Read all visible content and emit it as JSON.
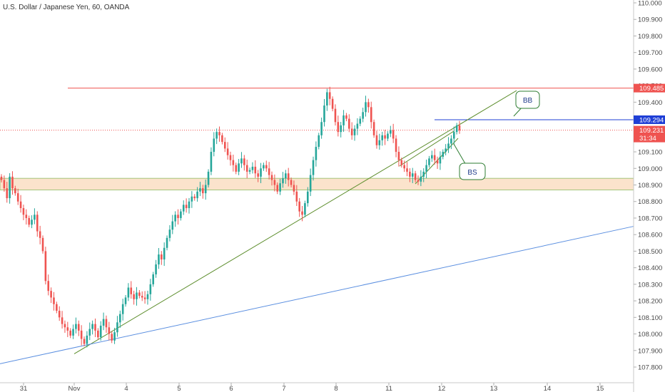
{
  "title": "U.S. Dollar / Japanese Yen, 60, OANDA",
  "colors": {
    "up": "#26a69a",
    "down": "#ef5350",
    "resistance": "#ef5350",
    "bb_line": "#1f3fd6",
    "trend_green": "#5b8c2a",
    "trend_blue": "#5b8fe0",
    "zone_fill": "#fbe3cc",
    "zone_border": "#a4c47a",
    "callout_border": "#2e7d32"
  },
  "chart_data": {
    "type": "candlestick",
    "y_range": [
      107.75,
      110.02
    ],
    "y_ticks": [
      "110.000",
      "109.900",
      "109.800",
      "109.700",
      "109.600",
      "109.500",
      "109.400",
      "109.300",
      "109.200",
      "109.100",
      "109.000",
      "108.900",
      "108.800",
      "108.700",
      "108.600",
      "108.500",
      "108.400",
      "108.300",
      "108.200",
      "108.100",
      "108.000",
      "107.900",
      "107.800"
    ],
    "x_ticks": [
      "31",
      "Nov",
      "4",
      "5",
      "6",
      "7",
      "8",
      "11",
      "12",
      "13",
      "14",
      "15"
    ],
    "price_badges": [
      {
        "label": "109.485",
        "value": 109.485,
        "color": "#ef5350"
      },
      {
        "label": "109.294",
        "value": 109.294,
        "color": "#1f3fd6"
      },
      {
        "label": "109.231",
        "value": 109.231,
        "color": "#ef5350"
      },
      {
        "label": "31:34",
        "value": 109.175,
        "color": "#ef5350"
      }
    ],
    "last_price": 109.231,
    "horizontal_lines": [
      {
        "name": "resistance",
        "value": 109.485
      },
      {
        "name": "bb-level",
        "value": 109.294
      }
    ],
    "zone": {
      "top": 108.94,
      "bottom": 108.87
    },
    "trend_lines": [
      {
        "name": "green-support",
        "from": {
          "x": "Nov",
          "y": 107.88
        },
        "to": {
          "x": "13",
          "y": 109.47
        }
      },
      {
        "name": "blue-support",
        "from": {
          "x": "31",
          "y": 107.82
        },
        "to": {
          "x": "15",
          "y": 108.65
        }
      }
    ],
    "callouts": [
      {
        "label": "BB",
        "near": "109.294 line"
      },
      {
        "label": "BS",
        "near": "rising wedge"
      }
    ],
    "closes": [
      108.93,
      108.88,
      108.82,
      108.95,
      108.88,
      108.85,
      108.8,
      108.76,
      108.72,
      108.7,
      108.66,
      108.69,
      108.72,
      108.62,
      108.58,
      108.5,
      108.32,
      108.26,
      108.22,
      108.18,
      108.14,
      108.1,
      108.06,
      108.04,
      108.02,
      107.99,
      108.03,
      108.06,
      108.02,
      107.97,
      107.94,
      107.99,
      108.03,
      108.06,
      108.02,
      107.98,
      108.05,
      108.09,
      108.04,
      108.0,
      107.96,
      108.01,
      108.07,
      108.12,
      108.18,
      108.22,
      108.28,
      108.24,
      108.21,
      108.25,
      108.23,
      108.22,
      108.21,
      108.24,
      108.3,
      108.36,
      108.42,
      108.48,
      108.45,
      108.52,
      108.58,
      108.63,
      108.68,
      108.72,
      108.7,
      108.74,
      108.78,
      108.76,
      108.8,
      108.83,
      108.82,
      108.86,
      108.88,
      108.85,
      108.9,
      108.98,
      109.1,
      109.18,
      109.22,
      109.2,
      109.16,
      109.12,
      109.08,
      109.05,
      109.02,
      108.98,
      109.03,
      109.06,
      109.02,
      108.98,
      108.99,
      109.01,
      108.97,
      108.95,
      109.0,
      109.02,
      109.0,
      108.96,
      108.93,
      108.9,
      108.86,
      108.91,
      108.94,
      108.97,
      108.93,
      108.9,
      108.86,
      108.8,
      108.74,
      108.72,
      108.79,
      108.86,
      108.96,
      109.05,
      109.13,
      109.2,
      109.28,
      109.38,
      109.46,
      109.42,
      109.36,
      109.28,
      109.22,
      109.26,
      109.32,
      109.3,
      109.24,
      109.2,
      109.24,
      109.27,
      109.3,
      109.34,
      109.4,
      109.37,
      109.28,
      109.2,
      109.14,
      109.17,
      109.2,
      109.18,
      109.21,
      109.23,
      109.18,
      109.1,
      109.05,
      109.02,
      109.0,
      108.98,
      108.95,
      108.97,
      108.93,
      108.92,
      108.95,
      108.98,
      109.02,
      109.06,
      109.08,
      109.05,
      109.03,
      109.07,
      109.1,
      109.12,
      109.15,
      109.18,
      109.22,
      109.26,
      109.23
    ]
  }
}
